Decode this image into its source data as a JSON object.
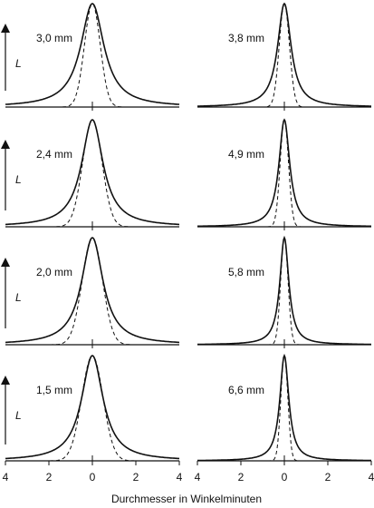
{
  "chart_data": [
    {
      "type": "line",
      "title": "3,0 mm",
      "ylabel": "L",
      "xlim": [
        -4,
        4
      ],
      "series": [
        {
          "style": "solid",
          "fwhm": 1.3
        },
        {
          "style": "dashed",
          "fwhm": 0.85
        }
      ]
    },
    {
      "type": "line",
      "title": "3,8 mm",
      "ylabel": "",
      "xlim": [
        -4,
        4
      ],
      "series": [
        {
          "style": "solid",
          "fwhm": 0.75
        },
        {
          "style": "dashed",
          "fwhm": 0.55
        }
      ]
    },
    {
      "type": "line",
      "title": "2,4 mm",
      "ylabel": "L",
      "xlim": [
        -4,
        4
      ],
      "series": [
        {
          "style": "solid",
          "fwhm": 1.2
        },
        {
          "style": "dashed",
          "fwhm": 1.05
        }
      ]
    },
    {
      "type": "line",
      "title": "4,9 mm",
      "ylabel": "",
      "xlim": [
        -4,
        4
      ],
      "series": [
        {
          "style": "solid",
          "fwhm": 0.6
        },
        {
          "style": "dashed",
          "fwhm": 0.45
        }
      ]
    },
    {
      "type": "line",
      "title": "2,0 mm",
      "ylabel": "L",
      "xlim": [
        -4,
        4
      ],
      "series": [
        {
          "style": "solid",
          "fwhm": 1.2
        },
        {
          "style": "dashed",
          "fwhm": 1.1
        }
      ]
    },
    {
      "type": "line",
      "title": "5,8 mm",
      "ylabel": "",
      "xlim": [
        -4,
        4
      ],
      "series": [
        {
          "style": "solid",
          "fwhm": 0.5
        },
        {
          "style": "dashed",
          "fwhm": 0.4
        }
      ]
    },
    {
      "type": "line",
      "title": "1,5 mm",
      "ylabel": "L",
      "xlim": [
        -4,
        4
      ],
      "series": [
        {
          "style": "solid",
          "fwhm": 1.2
        },
        {
          "style": "dashed",
          "fwhm": 1.15
        }
      ]
    },
    {
      "type": "line",
      "title": "6,6 mm",
      "ylabel": "",
      "xlim": [
        -4,
        4
      ],
      "series": [
        {
          "style": "solid",
          "fwhm": 0.5
        },
        {
          "style": "dashed",
          "fwhm": 0.38
        }
      ]
    }
  ],
  "x_ticks": [
    "4",
    "2",
    "0",
    "2",
    "4"
  ],
  "x_axis_label": "Durchmesser in Winkelminuten",
  "colors": {
    "line": "#111111",
    "background": "#ffffff"
  }
}
